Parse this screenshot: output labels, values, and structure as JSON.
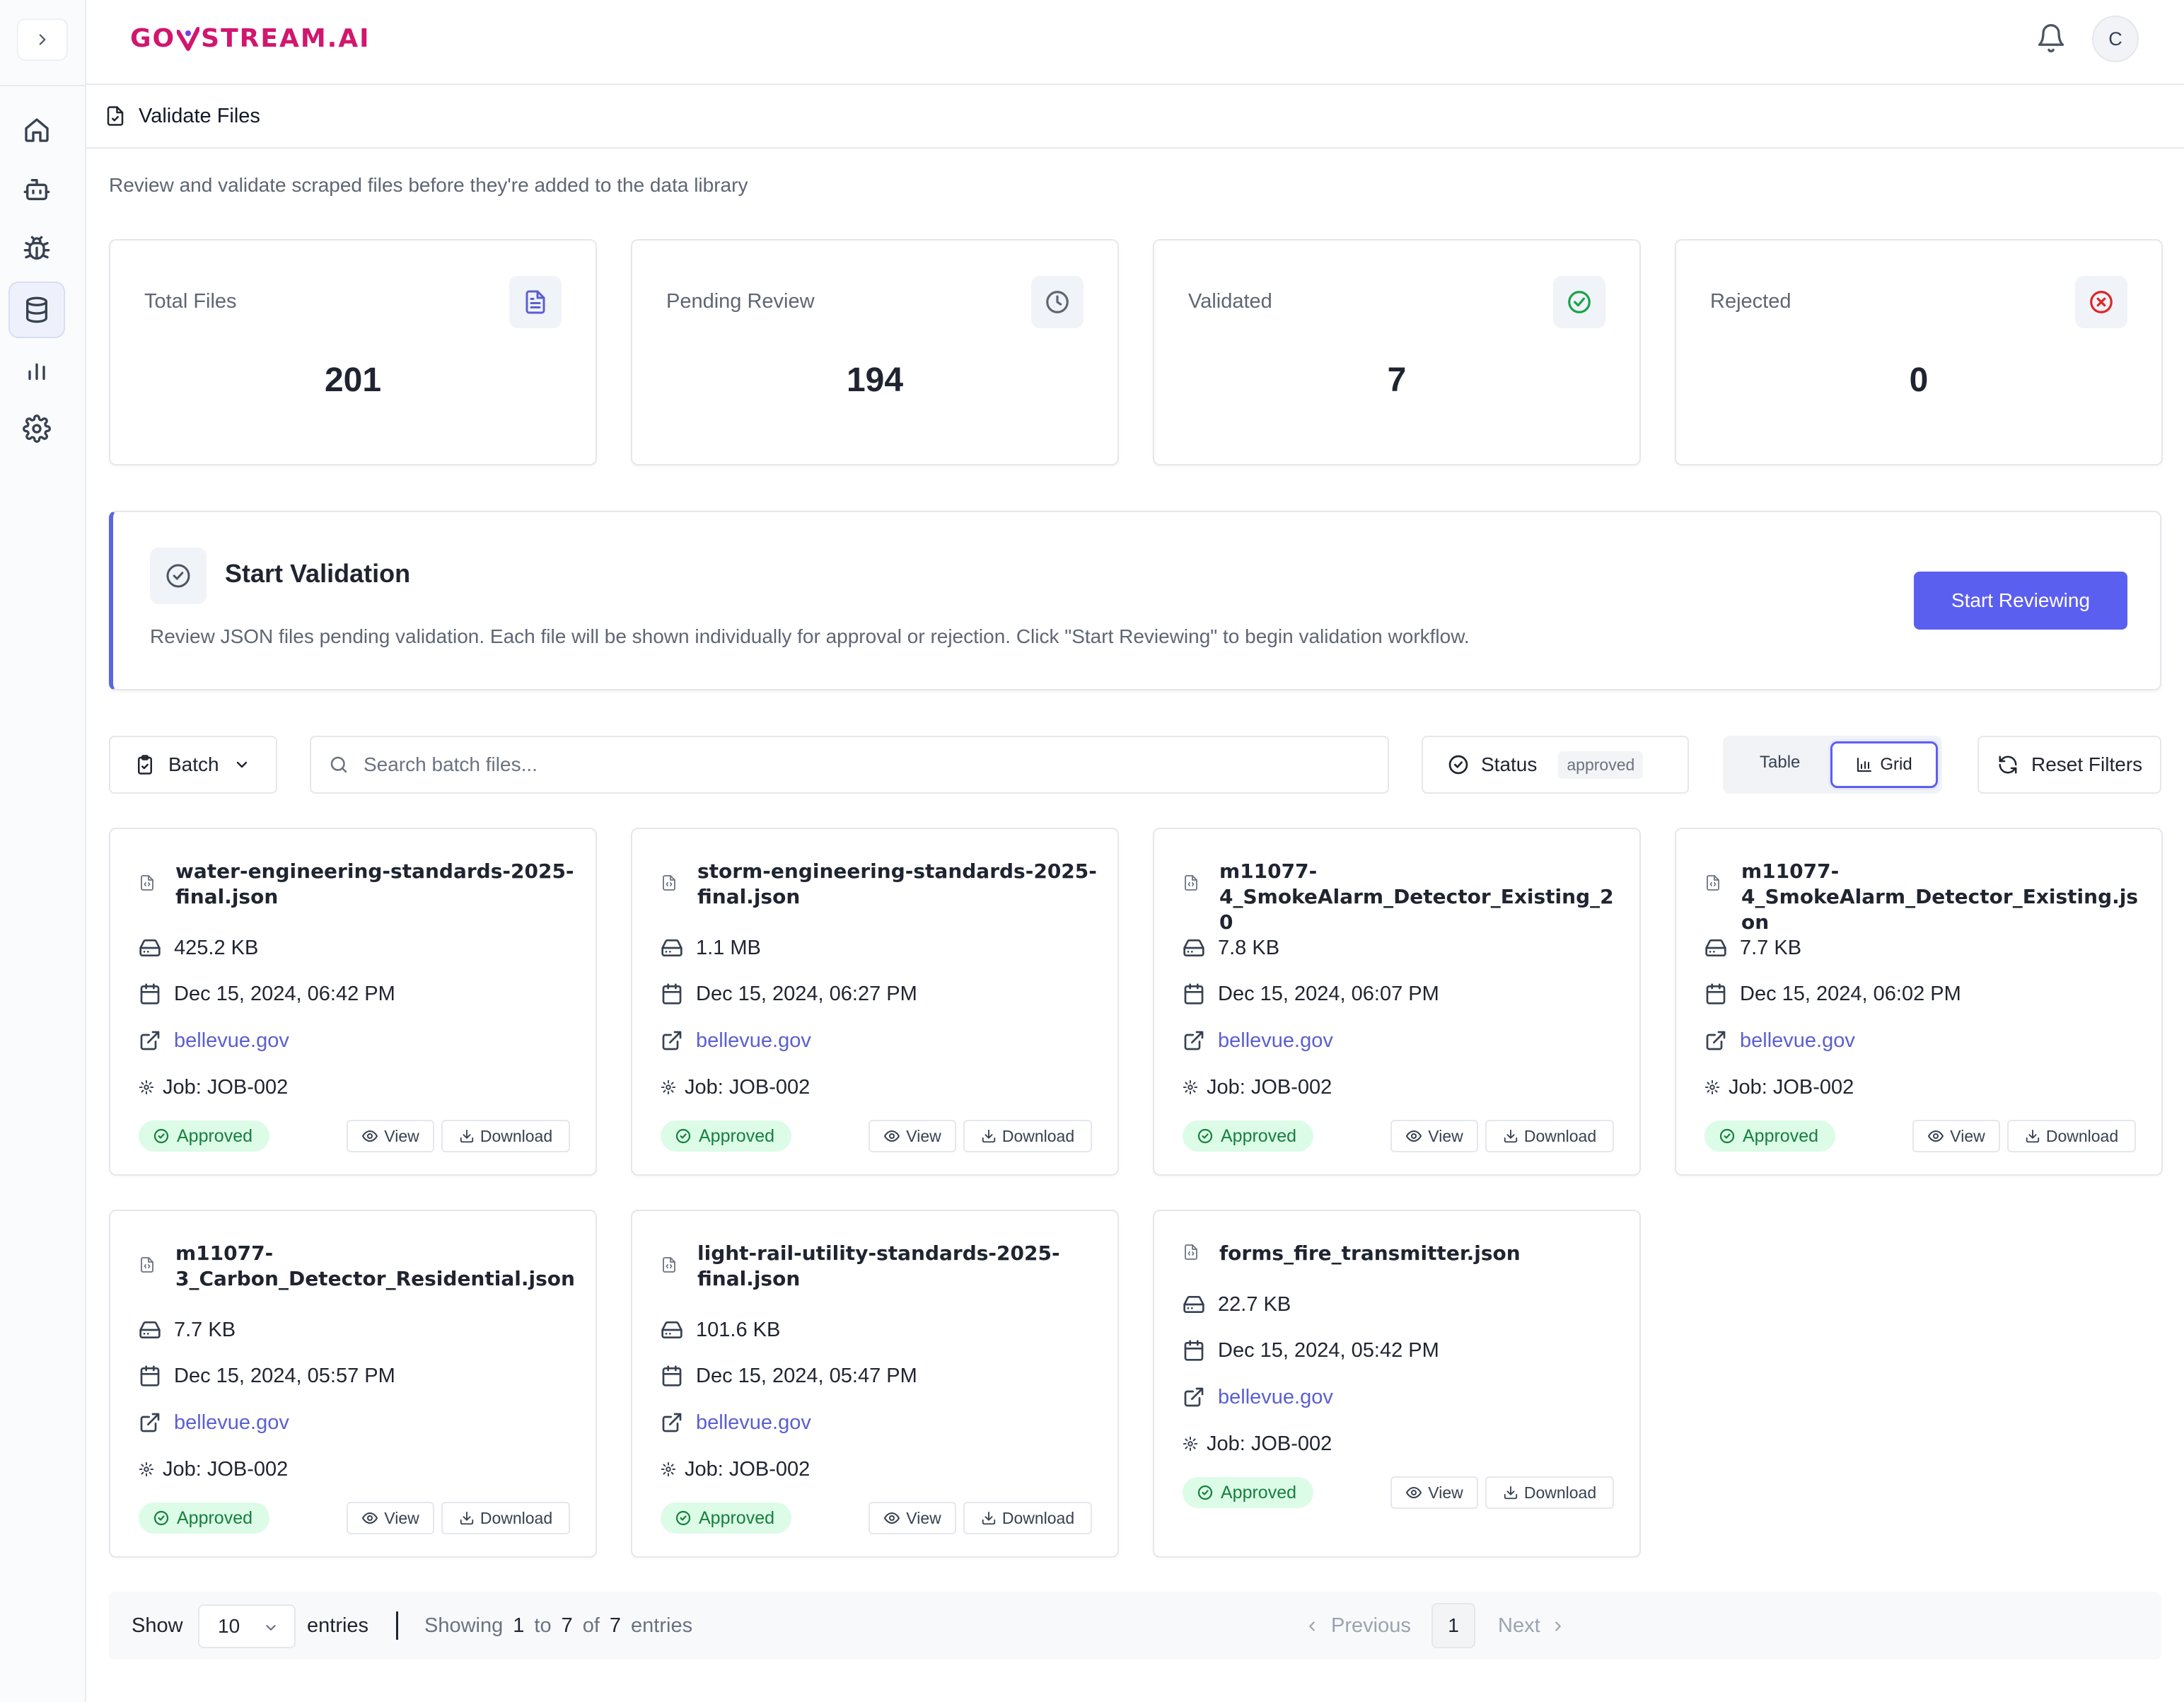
{
  "app": {
    "logo_left": "GO",
    "logo_right": "STREAM.AI",
    "avatar_initial": "C"
  },
  "sidebar": {
    "items": [
      {
        "icon": "home-icon",
        "active": false
      },
      {
        "icon": "bot-icon",
        "active": false
      },
      {
        "icon": "bug-icon",
        "active": false
      },
      {
        "icon": "database-icon",
        "active": true
      },
      {
        "icon": "bar-chart-icon",
        "active": false
      },
      {
        "icon": "settings-icon",
        "active": false
      }
    ]
  },
  "page": {
    "title": "Validate Files",
    "intro": "Review and validate scraped files before they're added to the data library"
  },
  "stats": [
    {
      "label": "Total Files",
      "value": "201",
      "icon": "file-text-icon",
      "color": "#5b5fd0"
    },
    {
      "label": "Pending Review",
      "value": "194",
      "icon": "clock-icon",
      "color": "#5f6673"
    },
    {
      "label": "Validated",
      "value": "7",
      "icon": "check-circle-icon",
      "color": "#16a34a"
    },
    {
      "label": "Rejected",
      "value": "0",
      "icon": "x-circle-icon",
      "color": "#dc2626"
    }
  ],
  "start_validation": {
    "title": "Start Validation",
    "description": "Review JSON files pending validation. Each file will be shown individually for approval or rejection. Click \"Start Reviewing\" to begin validation workflow.",
    "button": "Start Reviewing"
  },
  "toolbar": {
    "batch_label": "Batch",
    "search_placeholder": "Search batch files...",
    "status_label": "Status",
    "status_value": "approved",
    "view_table": "Table",
    "view_grid": "Grid",
    "reset_label": "Reset Filters"
  },
  "files": [
    {
      "name": "water-engineering-standards-2025-final.json",
      "size": "425.2 KB",
      "date": "Dec 15, 2024, 06:42 PM",
      "source": "bellevue.gov",
      "job": "Job: JOB-002",
      "status": "Approved"
    },
    {
      "name": "storm-engineering-standards-2025-final.json",
      "size": "1.1 MB",
      "date": "Dec 15, 2024, 06:27 PM",
      "source": "bellevue.gov",
      "job": "Job: JOB-002",
      "status": "Approved"
    },
    {
      "name": "m11077-4_SmokeAlarm_Detector_Existing_20",
      "size": "7.8 KB",
      "date": "Dec 15, 2024, 06:07 PM",
      "source": "bellevue.gov",
      "job": "Job: JOB-002",
      "status": "Approved"
    },
    {
      "name": "m11077-4_SmokeAlarm_Detector_Existing.json",
      "size": "7.7 KB",
      "date": "Dec 15, 2024, 06:02 PM",
      "source": "bellevue.gov",
      "job": "Job: JOB-002",
      "status": "Approved"
    },
    {
      "name": "m11077-3_Carbon_Detector_Residential.json",
      "size": "7.7 KB",
      "date": "Dec 15, 2024, 05:57 PM",
      "source": "bellevue.gov",
      "job": "Job: JOB-002",
      "status": "Approved"
    },
    {
      "name": "light-rail-utility-standards-2025-final.json",
      "size": "101.6 KB",
      "date": "Dec 15, 2024, 05:47 PM",
      "source": "bellevue.gov",
      "job": "Job: JOB-002",
      "status": "Approved"
    },
    {
      "name": "forms_fire_transmitter.json",
      "size": "22.7 KB",
      "date": "Dec 15, 2024, 05:42 PM",
      "source": "bellevue.gov",
      "job": "Job: JOB-002",
      "status": "Approved"
    }
  ],
  "card_actions": {
    "view": "View",
    "download": "Download"
  },
  "pagination": {
    "show": "Show",
    "page_size": "10",
    "entries": "entries",
    "showing": "Showing",
    "from": "1",
    "to_word": "to",
    "to": "7",
    "of_word": "of",
    "total": "7",
    "entries_suffix": "entries",
    "prev": "Previous",
    "current": "1",
    "next": "Next"
  }
}
